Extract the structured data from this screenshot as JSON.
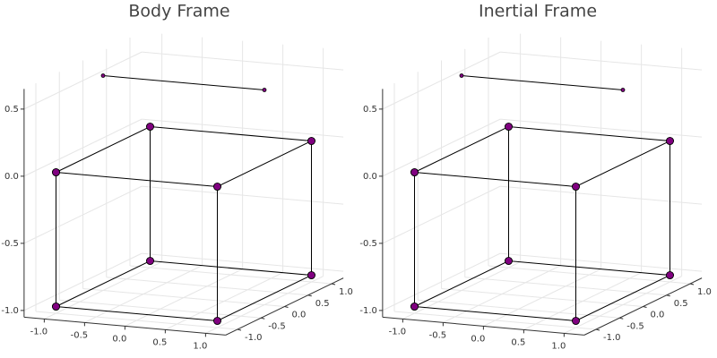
{
  "chart_data": [
    {
      "type": "line3d",
      "title": "Body Frame",
      "xlim": [
        -1.25,
        1.25
      ],
      "ylim": [
        -1.25,
        1.25
      ],
      "zlim": [
        -1.05,
        0.65
      ],
      "xticks": [
        {
          "value": -1.0,
          "label": "-1.0"
        },
        {
          "value": -0.5,
          "label": "-0.5"
        },
        {
          "value": 0,
          "label": "0.0"
        },
        {
          "value": 0.5,
          "label": "0.5"
        },
        {
          "value": 1.0,
          "label": "1.0"
        }
      ],
      "yticks": [
        {
          "value": -1.0,
          "label": "-1.0"
        },
        {
          "value": -0.5,
          "label": "-0.5"
        },
        {
          "value": 0,
          "label": "0.0"
        },
        {
          "value": 0.5,
          "label": "0.5"
        },
        {
          "value": 1.0,
          "label": "1.0"
        }
      ],
      "zticks": [
        {
          "value": -1.0,
          "label": "-1.0"
        },
        {
          "value": -0.5,
          "label": "-0.5"
        },
        {
          "value": 0,
          "label": "0.0"
        },
        {
          "value": 0.5,
          "label": "0.5"
        }
      ],
      "grid": true,
      "series": [
        {
          "color": "#800080",
          "line_color": "#000000",
          "marker_size": 2,
          "x": [
            -1,
            1
          ],
          "y": [
            0,
            0
          ],
          "z": [
            0.55,
            0.55
          ]
        },
        {
          "color": "#800080",
          "line_color": "#000000",
          "marker_size": 4,
          "x": [
            -1,
            1,
            1,
            -1,
            -1,
            null,
            -1,
            1,
            1,
            -1,
            -1,
            null,
            -1,
            -1,
            null,
            1,
            1,
            null,
            1,
            1,
            null,
            -1,
            -1
          ],
          "y": [
            -1,
            -1,
            1,
            1,
            -1,
            null,
            -1,
            -1,
            1,
            1,
            -1,
            null,
            -1,
            -1,
            null,
            -1,
            -1,
            null,
            1,
            1,
            null,
            1,
            1
          ],
          "z": [
            0,
            0,
            0,
            0,
            0,
            null,
            -1,
            -1,
            -1,
            -1,
            -1,
            null,
            0,
            -1,
            null,
            0,
            -1,
            null,
            0,
            -1,
            null,
            0,
            -1
          ]
        }
      ]
    },
    {
      "type": "line3d",
      "title": "Inertial Frame",
      "xlim": [
        -1.25,
        1.25
      ],
      "ylim": [
        -1.25,
        1.25
      ],
      "zlim": [
        -1.05,
        0.65
      ],
      "xticks": [
        {
          "value": -1.0,
          "label": "-1.0"
        },
        {
          "value": -0.5,
          "label": "-0.5"
        },
        {
          "value": 0,
          "label": "0.0"
        },
        {
          "value": 0.5,
          "label": "0.5"
        },
        {
          "value": 1.0,
          "label": "1.0"
        }
      ],
      "yticks": [
        {
          "value": -1.0,
          "label": "-1.0"
        },
        {
          "value": -0.5,
          "label": "-0.5"
        },
        {
          "value": 0,
          "label": "0.0"
        },
        {
          "value": 0.5,
          "label": "0.5"
        },
        {
          "value": 1.0,
          "label": "1.0"
        }
      ],
      "zticks": [
        {
          "value": -1.0,
          "label": "-1.0"
        },
        {
          "value": -0.5,
          "label": "-0.5"
        },
        {
          "value": 0,
          "label": "0.0"
        },
        {
          "value": 0.5,
          "label": "0.5"
        }
      ],
      "grid": true,
      "series": [
        {
          "color": "#800080",
          "line_color": "#000000",
          "marker_size": 2,
          "x": [
            -1,
            1
          ],
          "y": [
            0,
            0
          ],
          "z": [
            0.55,
            0.55
          ]
        },
        {
          "color": "#800080",
          "line_color": "#000000",
          "marker_size": 4,
          "x": [
            -1,
            1,
            1,
            -1,
            -1,
            null,
            -1,
            1,
            1,
            -1,
            -1,
            null,
            -1,
            -1,
            null,
            1,
            1,
            null,
            1,
            1,
            null,
            -1,
            -1
          ],
          "y": [
            -1,
            -1,
            1,
            1,
            -1,
            null,
            -1,
            -1,
            1,
            1,
            -1,
            null,
            -1,
            -1,
            null,
            -1,
            -1,
            null,
            1,
            1,
            null,
            1,
            1
          ],
          "z": [
            0,
            0,
            0,
            0,
            0,
            null,
            -1,
            -1,
            -1,
            -1,
            -1,
            null,
            0,
            -1,
            null,
            0,
            -1,
            null,
            0,
            -1,
            null,
            0,
            -1
          ]
        }
      ]
    }
  ]
}
